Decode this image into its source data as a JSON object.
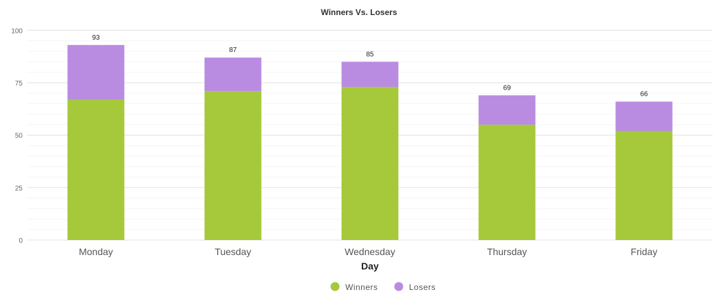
{
  "chart_data": {
    "type": "bar",
    "stacked": true,
    "title": "Winners Vs. Losers",
    "xlabel": "Day",
    "ylabel": "",
    "ylim": [
      0,
      100
    ],
    "yticks": [
      0,
      25,
      50,
      75,
      100
    ],
    "minor_grid_step": 5,
    "grid": true,
    "legend_position": "bottom",
    "categories": [
      "Monday",
      "Tuesday",
      "Wednesday",
      "Thursday",
      "Friday"
    ],
    "series": [
      {
        "name": "Winners",
        "color": "#a5c93a",
        "values": [
          67,
          71,
          73,
          55,
          52
        ]
      },
      {
        "name": "Losers",
        "color": "#b98ce2",
        "values": [
          26,
          16,
          12,
          14,
          14
        ]
      }
    ],
    "totals": [
      93,
      87,
      85,
      69,
      66
    ]
  }
}
